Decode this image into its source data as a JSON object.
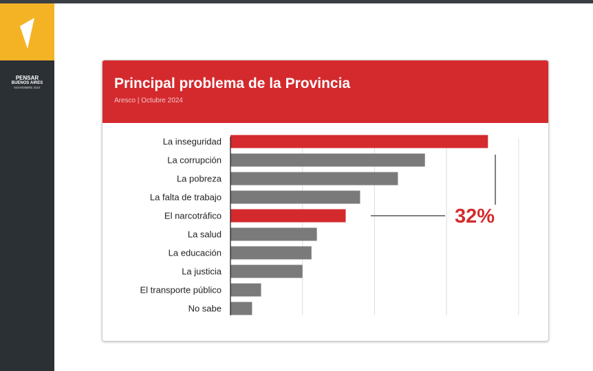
{
  "brand": {
    "line1": "PENSAR",
    "line2": "BUENOS AIRES",
    "line3": "NOVIEMBRE 2024",
    "logo_icon": "triangle-logo-icon",
    "colors": {
      "sidebar": "#2b3035",
      "logo_bg": "#f4b325"
    }
  },
  "chart_data": {
    "type": "bar",
    "orientation": "horizontal",
    "title": "Principal problema de la Provincia",
    "subtitle": "Aresco | Octubre 2024",
    "xlabel": "",
    "ylabel": "",
    "categories": [
      "La inseguridad",
      "La corrupción",
      "La pobreza",
      "La falta de trabajo",
      "El narcotráfico",
      "La salud",
      "La educación",
      "La justicia",
      "El transporte público",
      "No sabe"
    ],
    "values": [
      71.5,
      54,
      46.5,
      36,
      32,
      24,
      22.5,
      20,
      8.5,
      6
    ],
    "highlighted": [
      true,
      false,
      false,
      false,
      true,
      false,
      false,
      false,
      false,
      false
    ],
    "xlim": [
      0,
      80
    ],
    "grid": true,
    "colors": {
      "highlight": "#d42a2e",
      "default": "#7a7a7a",
      "grid": "#dddddd"
    },
    "annotation": {
      "text": "32%",
      "target": "El narcotráfico"
    }
  }
}
